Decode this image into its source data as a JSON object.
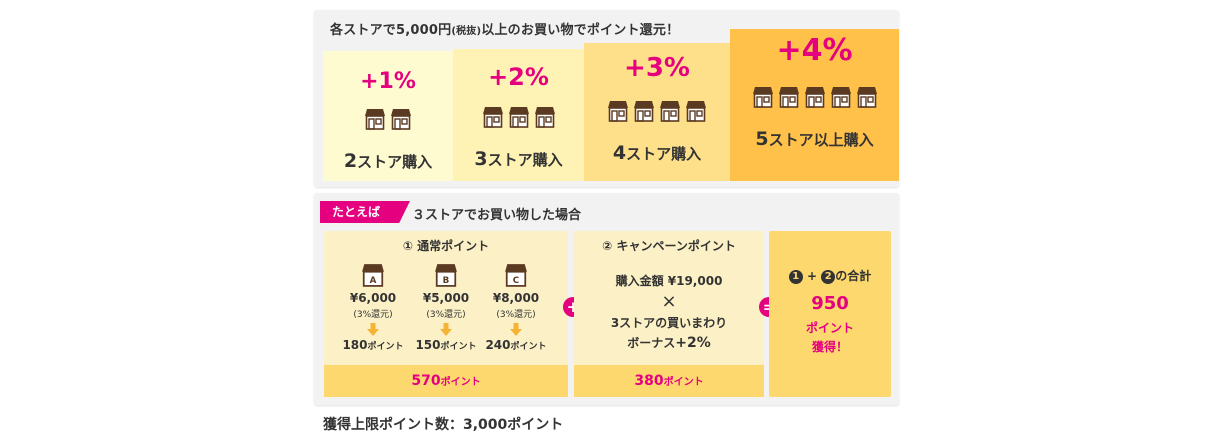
{
  "top": {
    "title_main": "各ストアで5,000円",
    "title_small": "(税抜)",
    "title_rest": "以上のお買い物でポイント還元！",
    "tiers": [
      {
        "percent": "+1%",
        "stores": 2,
        "num": "2",
        "label": "ストア購入",
        "color": "#fffbd0"
      },
      {
        "percent": "+2%",
        "stores": 3,
        "num": "3",
        "label": "ストア購入",
        "color": "#fff2b5"
      },
      {
        "percent": "+3%",
        "stores": 4,
        "num": "4",
        "label": "ストア購入",
        "color": "#ffe08a"
      },
      {
        "percent": "+4%",
        "stores": 5,
        "num": "5",
        "label": "ストア以上購入",
        "color": "#ffc14a"
      }
    ]
  },
  "example": {
    "tag": "たとえば",
    "title": "３ストアでお買い物した場合",
    "normal": {
      "heading": "① 通常ポイント",
      "stores": [
        {
          "letter": "A",
          "price": "¥6,000",
          "rate": "(3%還元)",
          "points": "180",
          "unit": "ポイント"
        },
        {
          "letter": "B",
          "price": "¥5,000",
          "rate": "(3%還元)",
          "points": "150",
          "unit": "ポイント"
        },
        {
          "letter": "C",
          "price": "¥8,000",
          "rate": "(3%還元)",
          "points": "240",
          "unit": "ポイント"
        }
      ],
      "total": "570",
      "total_unit": "ポイント"
    },
    "plus": "+",
    "campaign": {
      "heading": "② キャンペーンポイント",
      "line1": "購入金額 ¥19,000",
      "times": "×",
      "line2": "3ストアの買いまわり",
      "line3_prefix": "ボーナス",
      "line3_bonus": "+2%",
      "total": "380",
      "total_unit": "ポイント"
    },
    "equals": "=",
    "sum": {
      "c1": "1",
      "plus": "+",
      "c2": "2",
      "suffix": "の合計",
      "value": "950",
      "unit_line1": "ポイント",
      "unit_line2": "獲得！"
    }
  },
  "footnote": "獲得上限ポイント数：3,000ポイント",
  "colors": {
    "accent": "#e4007f",
    "store_brown": "#5b3a22"
  },
  "icons": [
    "store-icon",
    "arrow-down-icon"
  ]
}
